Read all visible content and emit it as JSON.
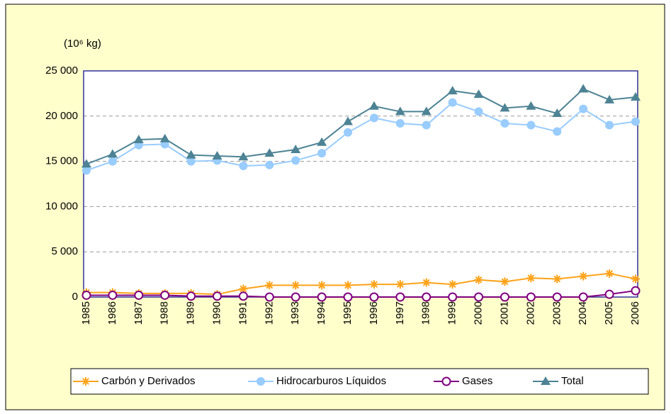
{
  "chart_data": {
    "type": "line",
    "y_label": "(10⁶ kg)",
    "categories": [
      "1985",
      "1986",
      "1987",
      "1988",
      "1989",
      "1990",
      "1991",
      "1992",
      "1993",
      "1994",
      "1995",
      "1996",
      "1997",
      "1998",
      "1999",
      "2000",
      "2001",
      "2002",
      "2003",
      "2004",
      "2005",
      "2006"
    ],
    "series": [
      {
        "name": "Carbón y Derivados",
        "color": "#ffa31a",
        "marker": "star",
        "values": [
          500,
          500,
          400,
          400,
          400,
          300,
          900,
          1300,
          1300,
          1300,
          1300,
          1400,
          1400,
          1600,
          1400,
          1900,
          1700,
          2100,
          2000,
          2300,
          2600,
          2000
        ]
      },
      {
        "name": "Hidrocarburos Líquidos",
        "color": "#99ccff",
        "marker": "circle",
        "values": [
          14000,
          15000,
          16800,
          16900,
          15000,
          15100,
          14500,
          14600,
          15100,
          15900,
          18200,
          19800,
          19200,
          19000,
          21500,
          20500,
          19200,
          19000,
          18300,
          20800,
          19000,
          19400
        ]
      },
      {
        "name": "Gases",
        "color": "#800080",
        "marker": "open-circle",
        "values": [
          200,
          200,
          200,
          200,
          100,
          100,
          100,
          0,
          0,
          0,
          0,
          0,
          0,
          0,
          0,
          0,
          0,
          0,
          0,
          0,
          300,
          700
        ]
      },
      {
        "name": "Total",
        "color": "#4d8394",
        "marker": "triangle",
        "values": [
          14700,
          15800,
          17400,
          17500,
          15700,
          15600,
          15500,
          15900,
          16300,
          17100,
          19400,
          21100,
          20500,
          20500,
          22800,
          22400,
          20900,
          21100,
          20300,
          23000,
          21800,
          22100
        ]
      }
    ],
    "ylim": [
      0,
      25000
    ],
    "yticks": [
      {
        "value": 0,
        "label": "0"
      },
      {
        "value": 5000,
        "label": "5 000"
      },
      {
        "value": 10000,
        "label": "10 000"
      },
      {
        "value": 15000,
        "label": "15 000"
      },
      {
        "value": 20000,
        "label": "20 000"
      },
      {
        "value": 25000,
        "label": "25 000"
      }
    ],
    "grid": true,
    "legend": "bottom"
  }
}
